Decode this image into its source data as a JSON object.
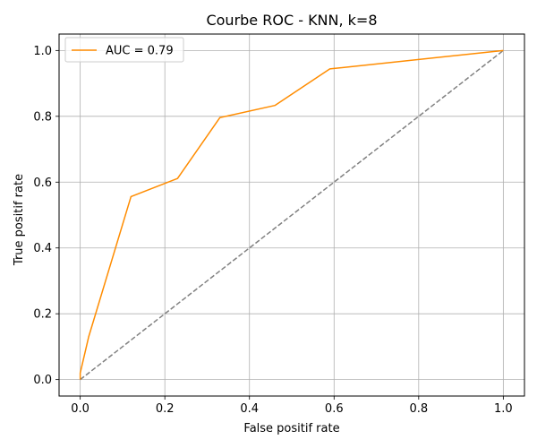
{
  "chart_data": {
    "type": "line",
    "title": "Courbe ROC - KNN, k=8",
    "xlabel": "False positif rate",
    "ylabel": "True positif rate",
    "xlim": [
      -0.05,
      1.05
    ],
    "ylim": [
      -0.05,
      1.05
    ],
    "xticks": [
      0.0,
      0.2,
      0.4,
      0.6,
      0.8,
      1.0
    ],
    "yticks": [
      0.0,
      0.2,
      0.4,
      0.6,
      0.8,
      1.0
    ],
    "xtick_labels": [
      "0.0",
      "0.2",
      "0.4",
      "0.6",
      "0.8",
      "1.0"
    ],
    "ytick_labels": [
      "0.0",
      "0.2",
      "0.4",
      "0.6",
      "0.8",
      "1.0"
    ],
    "grid": true,
    "legend_position": "top-left",
    "series": [
      {
        "name": "AUC = 0.79",
        "color": "#ff8c00",
        "style": "solid",
        "x": [
          0.0,
          0.0,
          0.02,
          0.02,
          0.12,
          0.23,
          0.33,
          0.46,
          0.59,
          1.0
        ],
        "y": [
          0.0,
          0.02,
          0.13,
          0.13,
          0.556,
          0.611,
          0.796,
          0.833,
          0.944,
          1.0
        ]
      },
      {
        "color": "#808080",
        "style": "dashed",
        "x": [
          0.0,
          1.0
        ],
        "y": [
          0.0,
          1.0
        ]
      }
    ]
  }
}
